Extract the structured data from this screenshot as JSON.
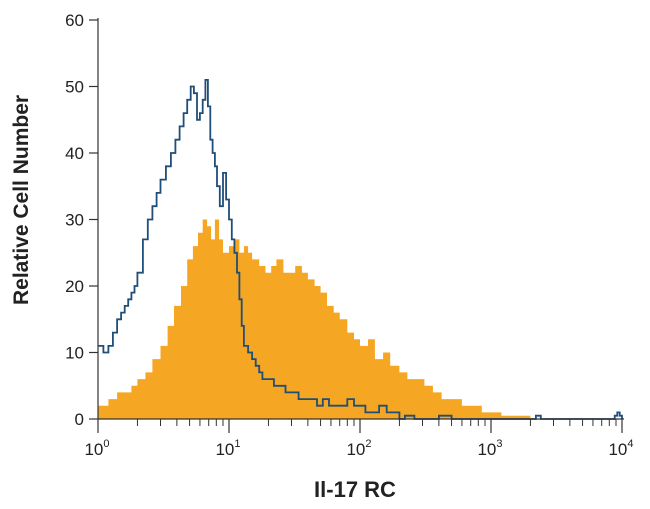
{
  "chart_data": {
    "type": "area",
    "title": "",
    "xlabel": "Il-17 RC",
    "ylabel": "Relative Cell Number",
    "x_scale": "log",
    "xlim": [
      1,
      10000
    ],
    "ylim": [
      0,
      60
    ],
    "x_ticks": [
      {
        "value": 1,
        "base": "10",
        "exp": "0"
      },
      {
        "value": 10,
        "base": "10",
        "exp": "1"
      },
      {
        "value": 100,
        "base": "10",
        "exp": "2"
      },
      {
        "value": 1000,
        "base": "10",
        "exp": "3"
      },
      {
        "value": 10000,
        "base": "10",
        "exp": "4"
      }
    ],
    "y_ticks": [
      0,
      10,
      20,
      30,
      40,
      50,
      60
    ],
    "grid": false,
    "legend": "none",
    "series": [
      {
        "style": "filled",
        "color": "#F5A623",
        "x": [
          1,
          1.2,
          1.4,
          1.6,
          1.8,
          2.0,
          2.3,
          2.6,
          3.0,
          3.4,
          3.8,
          4.3,
          4.8,
          5.3,
          5.8,
          6.3,
          6.8,
          7.3,
          7.8,
          8.4,
          9.0,
          10,
          11,
          12,
          13,
          14,
          15,
          17,
          19,
          21,
          23,
          26,
          29,
          32,
          36,
          40,
          45,
          50,
          56,
          63,
          70,
          80,
          90,
          100,
          115,
          130,
          150,
          170,
          200,
          230,
          270,
          310,
          360,
          420,
          500,
          600,
          700,
          850,
          1000,
          1200,
          1500,
          2000,
          3000,
          5000,
          10000
        ],
        "y": [
          2,
          3,
          4,
          4,
          5,
          6,
          7,
          9,
          11,
          14,
          17,
          20,
          24,
          26,
          28,
          30,
          29,
          27,
          30,
          27,
          25,
          26,
          27,
          25,
          26,
          25,
          24,
          23,
          22,
          23,
          24,
          22,
          22,
          23,
          22,
          21,
          20,
          19,
          17,
          16,
          15,
          13,
          12,
          11,
          12,
          9,
          10,
          8,
          7,
          6,
          6,
          5,
          4,
          3,
          3,
          2,
          2,
          1,
          1,
          0.5,
          0.5,
          0,
          0,
          0,
          0
        ]
      },
      {
        "style": "outline",
        "color": "#1F4E79",
        "x": [
          1,
          1.1,
          1.2,
          1.3,
          1.4,
          1.5,
          1.6,
          1.7,
          1.8,
          1.9,
          2.0,
          2.2,
          2.4,
          2.6,
          2.8,
          3.0,
          3.3,
          3.6,
          3.9,
          4.2,
          4.5,
          4.8,
          5.1,
          5.4,
          5.7,
          6.0,
          6.3,
          6.6,
          6.9,
          7.2,
          7.5,
          7.8,
          8.1,
          8.5,
          9.0,
          9.5,
          10,
          10.5,
          11,
          11.5,
          12,
          12.5,
          13,
          14,
          15,
          16,
          17,
          18,
          20,
          22,
          24,
          27,
          30,
          34,
          38,
          42,
          47,
          52,
          58,
          65,
          72,
          80,
          90,
          100,
          110,
          120,
          140,
          160,
          180,
          200,
          220,
          240,
          260,
          300,
          400,
          500,
          700,
          1000,
          1500,
          2000,
          2200,
          2400,
          3000,
          5000,
          8000,
          8800,
          9200,
          9600,
          10000
        ],
        "y": [
          11,
          10,
          11,
          13,
          15,
          16,
          17,
          18,
          19,
          20,
          22,
          27,
          30,
          32,
          34,
          36,
          38,
          40,
          42,
          44,
          46,
          48,
          50,
          49,
          45,
          46,
          48,
          51,
          47,
          42,
          40,
          38,
          35,
          32,
          37,
          33,
          30,
          27,
          25,
          22,
          18,
          14,
          11,
          10,
          9,
          8,
          7,
          6,
          6,
          5,
          5,
          4,
          4,
          3,
          3,
          3,
          2,
          3,
          2,
          2,
          2,
          3,
          2,
          2,
          1,
          1,
          2,
          1,
          1,
          0,
          0.5,
          0.5,
          0,
          0,
          0.5,
          0,
          0,
          0,
          0,
          0,
          0.5,
          0,
          0,
          0,
          0,
          0.5,
          1,
          0.5,
          0
        ]
      }
    ]
  }
}
